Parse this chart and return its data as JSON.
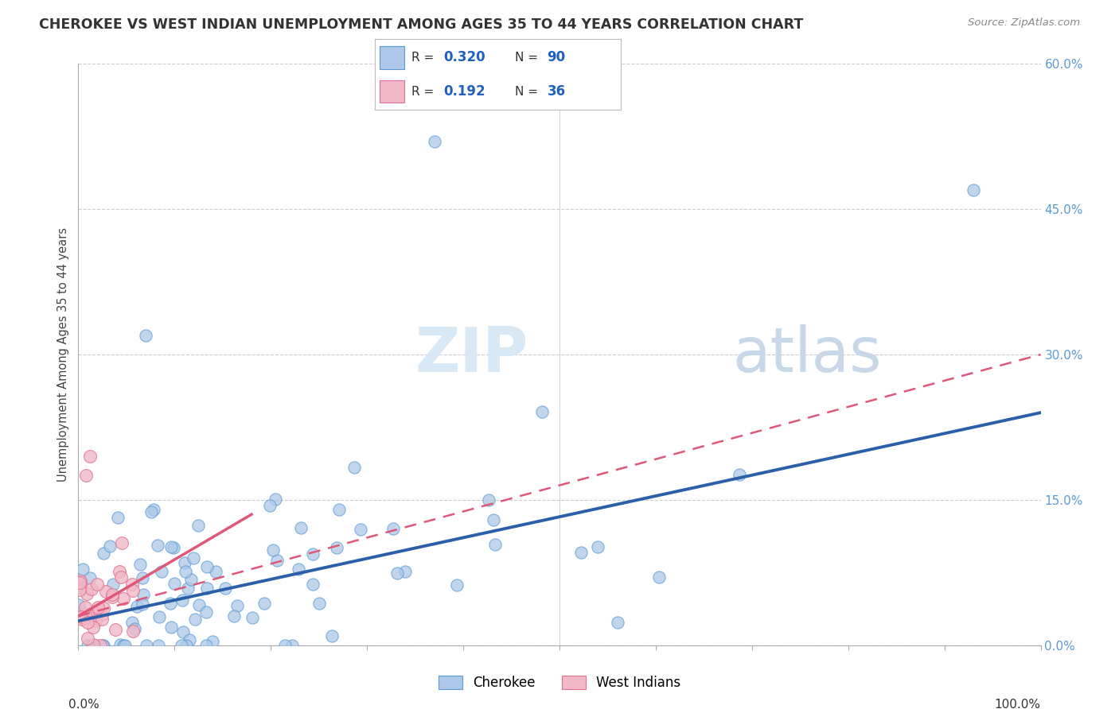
{
  "title": "CHEROKEE VS WEST INDIAN UNEMPLOYMENT AMONG AGES 35 TO 44 YEARS CORRELATION CHART",
  "source": "Source: ZipAtlas.com",
  "ylabel": "Unemployment Among Ages 35 to 44 years",
  "legend_cherokee": "Cherokee",
  "legend_west_indians": "West Indians",
  "cherokee_R": "0.320",
  "cherokee_N": "90",
  "west_indian_R": "0.192",
  "west_indian_N": "36",
  "cherokee_color": "#adc8e8",
  "cherokee_edge_color": "#5b9bd5",
  "cherokee_line_color": "#2b5fa8",
  "west_indian_color": "#f0b8c8",
  "west_indian_edge_color": "#e07090",
  "west_indian_line_color": "#e05878",
  "legend_text_color": "#2060c0",
  "legend_label_color": "#333333",
  "right_tick_color": "#5b9bd5",
  "background_color": "#ffffff",
  "watermark_zip_color": "#d8e8f5",
  "watermark_atlas_color": "#c8d8e8",
  "xlim": [
    0,
    100
  ],
  "ylim_data": [
    0,
    60
  ],
  "y_grid_pct": [
    0,
    15,
    30,
    45,
    60
  ],
  "cherokee_trend_x0": 0,
  "cherokee_trend_x1": 100,
  "cherokee_trend_y0": 2.5,
  "cherokee_trend_y1": 24.0,
  "wi_trend_x0": 0,
  "wi_trend_x1": 100,
  "wi_trend_y0": 3.0,
  "wi_trend_y1": 30.0,
  "wi_solid_x0": 0,
  "wi_solid_x1": 18,
  "wi_solid_y0": 3.0,
  "wi_solid_y1": 13.5
}
